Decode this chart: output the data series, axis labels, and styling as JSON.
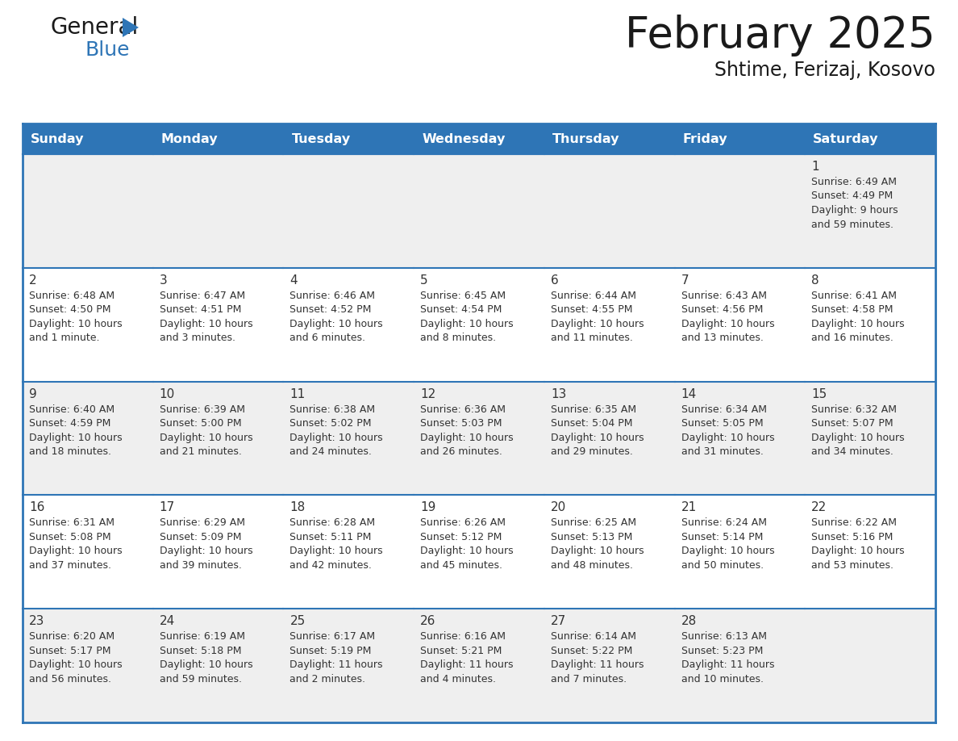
{
  "title": "February 2025",
  "subtitle": "Shtime, Ferizaj, Kosovo",
  "header_bg": "#2E75B6",
  "header_text_color": "#FFFFFF",
  "row_bg_odd": "#EFEFEF",
  "row_bg_even": "#FFFFFF",
  "border_color": "#2E75B6",
  "day_names": [
    "Sunday",
    "Monday",
    "Tuesday",
    "Wednesday",
    "Thursday",
    "Friday",
    "Saturday"
  ],
  "title_color": "#1A1A1A",
  "subtitle_color": "#1A1A1A",
  "day_num_color": "#333333",
  "info_text_color": "#333333",
  "logo_general_color": "#1A1A1A",
  "logo_blue_color": "#2E75B6",
  "logo_triangle_color": "#2E75B6",
  "calendar": [
    [
      {
        "day": "",
        "info": ""
      },
      {
        "day": "",
        "info": ""
      },
      {
        "day": "",
        "info": ""
      },
      {
        "day": "",
        "info": ""
      },
      {
        "day": "",
        "info": ""
      },
      {
        "day": "",
        "info": ""
      },
      {
        "day": "1",
        "info": "Sunrise: 6:49 AM\nSunset: 4:49 PM\nDaylight: 9 hours\nand 59 minutes."
      }
    ],
    [
      {
        "day": "2",
        "info": "Sunrise: 6:48 AM\nSunset: 4:50 PM\nDaylight: 10 hours\nand 1 minute."
      },
      {
        "day": "3",
        "info": "Sunrise: 6:47 AM\nSunset: 4:51 PM\nDaylight: 10 hours\nand 3 minutes."
      },
      {
        "day": "4",
        "info": "Sunrise: 6:46 AM\nSunset: 4:52 PM\nDaylight: 10 hours\nand 6 minutes."
      },
      {
        "day": "5",
        "info": "Sunrise: 6:45 AM\nSunset: 4:54 PM\nDaylight: 10 hours\nand 8 minutes."
      },
      {
        "day": "6",
        "info": "Sunrise: 6:44 AM\nSunset: 4:55 PM\nDaylight: 10 hours\nand 11 minutes."
      },
      {
        "day": "7",
        "info": "Sunrise: 6:43 AM\nSunset: 4:56 PM\nDaylight: 10 hours\nand 13 minutes."
      },
      {
        "day": "8",
        "info": "Sunrise: 6:41 AM\nSunset: 4:58 PM\nDaylight: 10 hours\nand 16 minutes."
      }
    ],
    [
      {
        "day": "9",
        "info": "Sunrise: 6:40 AM\nSunset: 4:59 PM\nDaylight: 10 hours\nand 18 minutes."
      },
      {
        "day": "10",
        "info": "Sunrise: 6:39 AM\nSunset: 5:00 PM\nDaylight: 10 hours\nand 21 minutes."
      },
      {
        "day": "11",
        "info": "Sunrise: 6:38 AM\nSunset: 5:02 PM\nDaylight: 10 hours\nand 24 minutes."
      },
      {
        "day": "12",
        "info": "Sunrise: 6:36 AM\nSunset: 5:03 PM\nDaylight: 10 hours\nand 26 minutes."
      },
      {
        "day": "13",
        "info": "Sunrise: 6:35 AM\nSunset: 5:04 PM\nDaylight: 10 hours\nand 29 minutes."
      },
      {
        "day": "14",
        "info": "Sunrise: 6:34 AM\nSunset: 5:05 PM\nDaylight: 10 hours\nand 31 minutes."
      },
      {
        "day": "15",
        "info": "Sunrise: 6:32 AM\nSunset: 5:07 PM\nDaylight: 10 hours\nand 34 minutes."
      }
    ],
    [
      {
        "day": "16",
        "info": "Sunrise: 6:31 AM\nSunset: 5:08 PM\nDaylight: 10 hours\nand 37 minutes."
      },
      {
        "day": "17",
        "info": "Sunrise: 6:29 AM\nSunset: 5:09 PM\nDaylight: 10 hours\nand 39 minutes."
      },
      {
        "day": "18",
        "info": "Sunrise: 6:28 AM\nSunset: 5:11 PM\nDaylight: 10 hours\nand 42 minutes."
      },
      {
        "day": "19",
        "info": "Sunrise: 6:26 AM\nSunset: 5:12 PM\nDaylight: 10 hours\nand 45 minutes."
      },
      {
        "day": "20",
        "info": "Sunrise: 6:25 AM\nSunset: 5:13 PM\nDaylight: 10 hours\nand 48 minutes."
      },
      {
        "day": "21",
        "info": "Sunrise: 6:24 AM\nSunset: 5:14 PM\nDaylight: 10 hours\nand 50 minutes."
      },
      {
        "day": "22",
        "info": "Sunrise: 6:22 AM\nSunset: 5:16 PM\nDaylight: 10 hours\nand 53 minutes."
      }
    ],
    [
      {
        "day": "23",
        "info": "Sunrise: 6:20 AM\nSunset: 5:17 PM\nDaylight: 10 hours\nand 56 minutes."
      },
      {
        "day": "24",
        "info": "Sunrise: 6:19 AM\nSunset: 5:18 PM\nDaylight: 10 hours\nand 59 minutes."
      },
      {
        "day": "25",
        "info": "Sunrise: 6:17 AM\nSunset: 5:19 PM\nDaylight: 11 hours\nand 2 minutes."
      },
      {
        "day": "26",
        "info": "Sunrise: 6:16 AM\nSunset: 5:21 PM\nDaylight: 11 hours\nand 4 minutes."
      },
      {
        "day": "27",
        "info": "Sunrise: 6:14 AM\nSunset: 5:22 PM\nDaylight: 11 hours\nand 7 minutes."
      },
      {
        "day": "28",
        "info": "Sunrise: 6:13 AM\nSunset: 5:23 PM\nDaylight: 11 hours\nand 10 minutes."
      },
      {
        "day": "",
        "info": ""
      }
    ]
  ]
}
